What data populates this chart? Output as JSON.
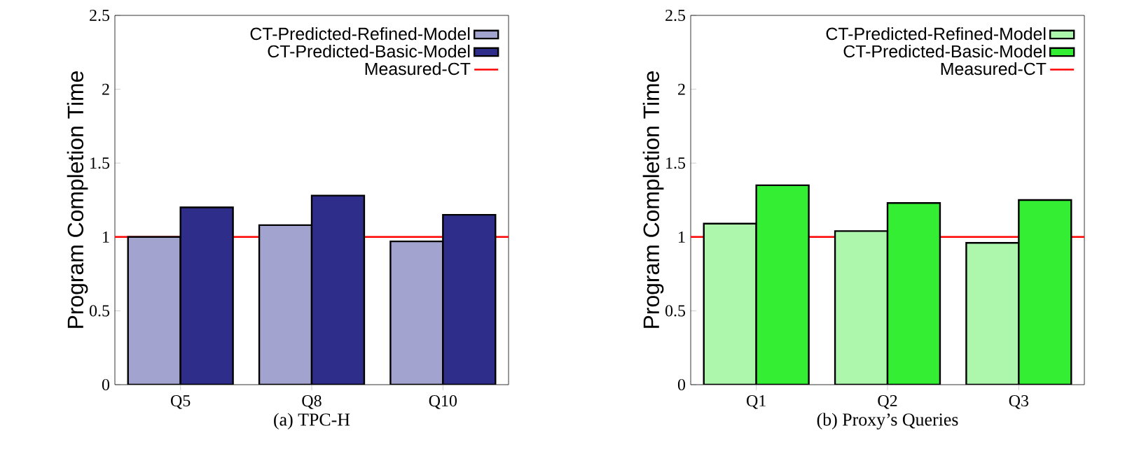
{
  "chart_data": [
    {
      "type": "bar",
      "xlabel": "(a) TPC-H",
      "ylabel": "Program Completion Time",
      "categories": [
        "Q5",
        "Q8",
        "Q10"
      ],
      "series": [
        {
          "name": "CT-Predicted-Refined-Model",
          "color": "#a3a3cf",
          "values": [
            1.0,
            1.08,
            0.97
          ]
        },
        {
          "name": "CT-Predicted-Basic-Model",
          "color": "#2e2e8a",
          "values": [
            1.2,
            1.28,
            1.15
          ]
        }
      ],
      "ref_lines": [
        {
          "axis": "y",
          "value": 1,
          "label": "Measured-CT",
          "color": "#ff0000"
        }
      ],
      "ylim": [
        0,
        2.5
      ],
      "yticks": [
        0,
        0.5,
        1,
        1.5,
        2,
        2.5
      ],
      "legend": "top right"
    },
    {
      "type": "bar",
      "xlabel": "(b) Proxy’s Queries",
      "ylabel": "Program Completion Time",
      "categories": [
        "Q1",
        "Q2",
        "Q3"
      ],
      "series": [
        {
          "name": "CT-Predicted-Refined-Model",
          "color": "#adf7ad",
          "values": [
            1.09,
            1.04,
            0.96
          ]
        },
        {
          "name": "CT-Predicted-Basic-Model",
          "color": "#33ee33",
          "values": [
            1.35,
            1.23,
            1.25
          ]
        }
      ],
      "ref_lines": [
        {
          "axis": "y",
          "value": 1,
          "label": "Measured-CT",
          "color": "#ff0000"
        }
      ],
      "ylim": [
        0,
        2.5
      ],
      "yticks": [
        0,
        0.5,
        1,
        1.5,
        2,
        2.5
      ],
      "legend": "top right"
    }
  ]
}
